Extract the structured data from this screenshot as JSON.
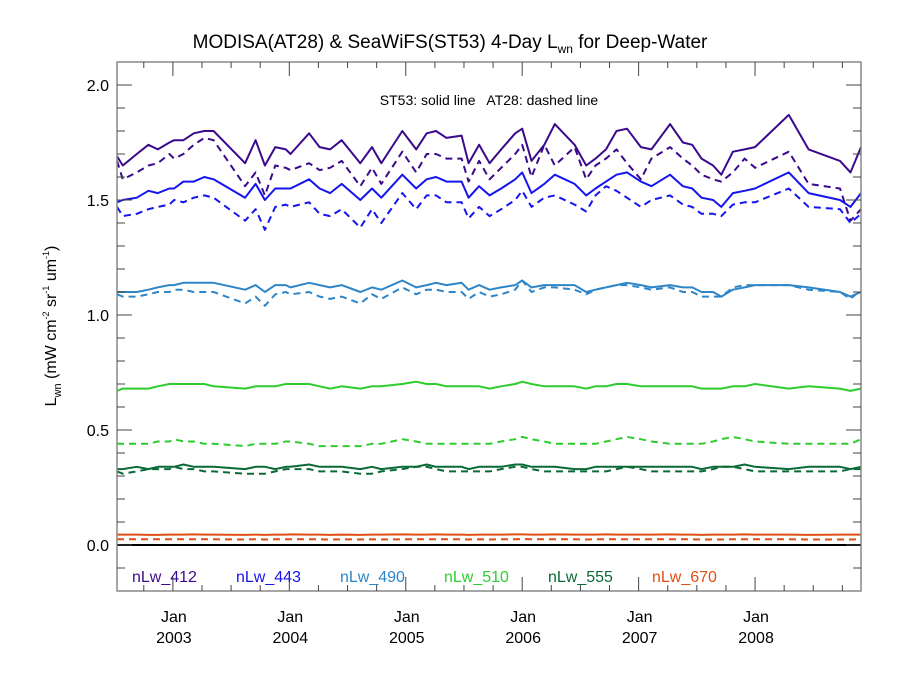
{
  "chart_data": {
    "type": "line",
    "title": "MODISA(AT28) & SeaWiFS(ST53) 4-Day L",
    "title_subscript": "wn",
    "title_suffix": " for Deep-Water",
    "annotation": "ST53: solid line   AT28: dashed line",
    "ylabel": {
      "main": "L",
      "main_sub": "wn",
      "units_parts": [
        {
          "text": " (mW cm",
          "sup": "-2"
        },
        {
          "text": " sr",
          "sup": "-1"
        },
        {
          "text": " um",
          "sup": "-1"
        },
        {
          "text": ")",
          "sup": ""
        }
      ]
    },
    "xlabel": "",
    "ylim": [
      -0.2,
      2.1
    ],
    "xlim": [
      2002.52,
      2008.91
    ],
    "yticks": [
      0.0,
      0.5,
      1.0,
      1.5,
      2.0
    ],
    "ytick_labels": [
      "0.0",
      "0.5",
      "1.0",
      "1.5",
      "2.0"
    ],
    "xticks": [
      {
        "value": 2003.0,
        "line1": "Jan",
        "line2": "2003"
      },
      {
        "value": 2004.0,
        "line1": "Jan",
        "line2": "2004"
      },
      {
        "value": 2005.0,
        "line1": "Jan",
        "line2": "2005"
      },
      {
        "value": 2006.0,
        "line1": "Jan",
        "line2": "2006"
      },
      {
        "value": 2007.0,
        "line1": "Jan",
        "line2": "2007"
      },
      {
        "value": 2008.0,
        "line1": "Jan",
        "line2": "2008"
      }
    ],
    "zero_line": 0.0,
    "grid": false,
    "legend_placement": "bottom-inside",
    "x": [
      2002.52,
      2002.57,
      2002.69,
      2002.79,
      2002.87,
      2002.97,
      2003.01,
      2003.09,
      2003.18,
      2003.27,
      2003.35,
      2003.62,
      2003.71,
      2003.79,
      2003.88,
      2003.97,
      2004.01,
      2004.17,
      2004.26,
      2004.35,
      2004.45,
      2004.61,
      2004.71,
      2004.79,
      2004.97,
      2005.09,
      2005.18,
      2005.26,
      2005.35,
      2005.48,
      2005.54,
      2005.63,
      2005.72,
      2005.82,
      2005.94,
      2006.0,
      2006.08,
      2006.19,
      2006.28,
      2006.45,
      2006.55,
      2006.63,
      2006.72,
      2006.81,
      2006.9,
      2007.02,
      2007.11,
      2007.27,
      2007.38,
      2007.46,
      2007.54,
      2007.64,
      2007.71,
      2007.81,
      2007.91,
      2008.0,
      2008.29,
      2008.46,
      2008.73,
      2008.82,
      2008.91
    ],
    "series": [
      {
        "name": "nLw_412",
        "sensor": "ST53",
        "style": "solid",
        "color": "#3b0a8c",
        "values": [
          1.69,
          1.65,
          1.7,
          1.74,
          1.72,
          1.75,
          1.76,
          1.76,
          1.79,
          1.8,
          1.8,
          1.66,
          1.76,
          1.65,
          1.73,
          1.72,
          1.7,
          1.79,
          1.73,
          1.72,
          1.76,
          1.66,
          1.73,
          1.66,
          1.8,
          1.72,
          1.79,
          1.8,
          1.77,
          1.78,
          1.66,
          1.74,
          1.66,
          1.72,
          1.79,
          1.81,
          1.67,
          1.74,
          1.83,
          1.74,
          1.65,
          1.68,
          1.72,
          1.8,
          1.81,
          1.73,
          1.72,
          1.83,
          1.75,
          1.74,
          1.68,
          1.65,
          1.61,
          1.71,
          1.72,
          1.73,
          1.87,
          1.72,
          1.67,
          1.62,
          1.73
        ]
      },
      {
        "name": "nLw_412",
        "sensor": "AT28",
        "style": "dashed",
        "color": "#3b0a8c",
        "values": [
          1.67,
          1.59,
          1.62,
          1.65,
          1.66,
          1.7,
          1.68,
          1.7,
          1.74,
          1.77,
          1.76,
          1.56,
          1.62,
          1.52,
          1.65,
          1.64,
          1.63,
          1.66,
          1.63,
          1.64,
          1.67,
          1.56,
          1.64,
          1.57,
          1.71,
          1.62,
          1.7,
          1.7,
          1.68,
          1.68,
          1.58,
          1.67,
          1.59,
          1.64,
          1.7,
          1.74,
          1.6,
          1.74,
          1.65,
          1.73,
          1.59,
          1.65,
          1.68,
          1.72,
          1.66,
          1.59,
          1.68,
          1.73,
          1.68,
          1.65,
          1.61,
          1.59,
          1.58,
          1.62,
          1.68,
          1.64,
          1.71,
          1.57,
          1.55,
          1.41,
          1.46
        ]
      },
      {
        "name": "nLw_443",
        "sensor": "ST53",
        "style": "solid",
        "color": "#1414f0",
        "values": [
          1.49,
          1.5,
          1.51,
          1.54,
          1.53,
          1.55,
          1.55,
          1.58,
          1.58,
          1.6,
          1.59,
          1.51,
          1.57,
          1.5,
          1.55,
          1.55,
          1.55,
          1.59,
          1.55,
          1.53,
          1.57,
          1.5,
          1.55,
          1.51,
          1.61,
          1.55,
          1.59,
          1.6,
          1.58,
          1.58,
          1.51,
          1.56,
          1.52,
          1.55,
          1.59,
          1.62,
          1.53,
          1.57,
          1.61,
          1.57,
          1.52,
          1.55,
          1.58,
          1.61,
          1.62,
          1.58,
          1.56,
          1.61,
          1.56,
          1.55,
          1.51,
          1.5,
          1.47,
          1.53,
          1.54,
          1.55,
          1.62,
          1.53,
          1.5,
          1.47,
          1.53
        ]
      },
      {
        "name": "nLw_443",
        "sensor": "AT28",
        "style": "dashed",
        "color": "#1414f0",
        "values": [
          1.47,
          1.43,
          1.44,
          1.46,
          1.47,
          1.48,
          1.5,
          1.49,
          1.51,
          1.52,
          1.51,
          1.41,
          1.46,
          1.37,
          1.47,
          1.48,
          1.47,
          1.49,
          1.44,
          1.43,
          1.46,
          1.38,
          1.46,
          1.4,
          1.53,
          1.46,
          1.52,
          1.52,
          1.49,
          1.49,
          1.42,
          1.47,
          1.43,
          1.46,
          1.5,
          1.54,
          1.47,
          1.51,
          1.52,
          1.48,
          1.45,
          1.52,
          1.56,
          1.54,
          1.51,
          1.47,
          1.5,
          1.52,
          1.48,
          1.47,
          1.44,
          1.44,
          1.43,
          1.48,
          1.49,
          1.49,
          1.55,
          1.47,
          1.46,
          1.4,
          1.44
        ]
      },
      {
        "name": "nLw_490",
        "sensor": "ST53",
        "style": "solid",
        "color": "#2e86c8",
        "values": [
          1.1,
          1.1,
          1.1,
          1.11,
          1.12,
          1.13,
          1.13,
          1.14,
          1.14,
          1.14,
          1.14,
          1.11,
          1.13,
          1.1,
          1.13,
          1.13,
          1.12,
          1.14,
          1.13,
          1.12,
          1.13,
          1.1,
          1.12,
          1.11,
          1.15,
          1.12,
          1.13,
          1.14,
          1.13,
          1.14,
          1.11,
          1.13,
          1.11,
          1.12,
          1.13,
          1.15,
          1.12,
          1.13,
          1.13,
          1.13,
          1.1,
          1.11,
          1.12,
          1.13,
          1.14,
          1.13,
          1.12,
          1.13,
          1.12,
          1.12,
          1.1,
          1.1,
          1.08,
          1.11,
          1.12,
          1.13,
          1.13,
          1.12,
          1.1,
          1.08,
          1.1
        ]
      },
      {
        "name": "nLw_490",
        "sensor": "AT28",
        "style": "dashed",
        "color": "#2e86c8",
        "values": [
          1.09,
          1.08,
          1.08,
          1.09,
          1.1,
          1.1,
          1.11,
          1.11,
          1.1,
          1.1,
          1.1,
          1.05,
          1.08,
          1.04,
          1.09,
          1.1,
          1.09,
          1.1,
          1.08,
          1.07,
          1.08,
          1.05,
          1.09,
          1.07,
          1.12,
          1.09,
          1.11,
          1.11,
          1.1,
          1.1,
          1.07,
          1.1,
          1.08,
          1.09,
          1.11,
          1.15,
          1.1,
          1.12,
          1.12,
          1.11,
          1.09,
          1.11,
          1.12,
          1.13,
          1.13,
          1.12,
          1.11,
          1.12,
          1.1,
          1.1,
          1.08,
          1.08,
          1.08,
          1.12,
          1.13,
          1.13,
          1.13,
          1.11,
          1.1,
          1.07,
          1.11
        ]
      },
      {
        "name": "nLw_510",
        "sensor": "ST53",
        "style": "solid",
        "color": "#2ecc2e",
        "values": [
          0.67,
          0.68,
          0.68,
          0.68,
          0.69,
          0.7,
          0.7,
          0.7,
          0.7,
          0.7,
          0.69,
          0.68,
          0.69,
          0.69,
          0.69,
          0.7,
          0.7,
          0.7,
          0.69,
          0.68,
          0.69,
          0.68,
          0.69,
          0.69,
          0.7,
          0.71,
          0.7,
          0.7,
          0.69,
          0.69,
          0.69,
          0.69,
          0.68,
          0.69,
          0.7,
          0.71,
          0.7,
          0.69,
          0.69,
          0.69,
          0.68,
          0.69,
          0.69,
          0.7,
          0.7,
          0.69,
          0.69,
          0.69,
          0.69,
          0.69,
          0.68,
          0.68,
          0.68,
          0.69,
          0.69,
          0.7,
          0.68,
          0.69,
          0.68,
          0.67,
          0.68
        ]
      },
      {
        "name": "nLw_510",
        "sensor": "AT28",
        "style": "dashed",
        "color": "#2ecc2e",
        "values": [
          0.44,
          0.44,
          0.44,
          0.44,
          0.45,
          0.45,
          0.46,
          0.45,
          0.45,
          0.44,
          0.44,
          0.43,
          0.44,
          0.44,
          0.44,
          0.45,
          0.45,
          0.44,
          0.43,
          0.43,
          0.43,
          0.43,
          0.44,
          0.44,
          0.46,
          0.45,
          0.44,
          0.44,
          0.44,
          0.44,
          0.44,
          0.44,
          0.44,
          0.45,
          0.46,
          0.47,
          0.46,
          0.45,
          0.44,
          0.44,
          0.44,
          0.44,
          0.45,
          0.46,
          0.47,
          0.46,
          0.45,
          0.44,
          0.44,
          0.44,
          0.44,
          0.45,
          0.46,
          0.47,
          0.46,
          0.45,
          0.44,
          0.44,
          0.44,
          0.44,
          0.46
        ]
      },
      {
        "name": "nLw_555",
        "sensor": "ST53",
        "style": "solid",
        "color": "#0a6a35",
        "values": [
          0.33,
          0.33,
          0.34,
          0.33,
          0.34,
          0.34,
          0.34,
          0.35,
          0.34,
          0.34,
          0.34,
          0.33,
          0.34,
          0.34,
          0.33,
          0.34,
          0.34,
          0.35,
          0.34,
          0.34,
          0.34,
          0.33,
          0.34,
          0.33,
          0.34,
          0.34,
          0.35,
          0.34,
          0.34,
          0.34,
          0.33,
          0.34,
          0.34,
          0.34,
          0.35,
          0.35,
          0.34,
          0.34,
          0.34,
          0.33,
          0.33,
          0.34,
          0.34,
          0.34,
          0.34,
          0.34,
          0.34,
          0.34,
          0.34,
          0.34,
          0.33,
          0.34,
          0.34,
          0.34,
          0.35,
          0.34,
          0.33,
          0.34,
          0.34,
          0.33,
          0.34
        ]
      },
      {
        "name": "nLw_555",
        "sensor": "AT28",
        "style": "dashed",
        "color": "#0a6a35",
        "values": [
          0.32,
          0.31,
          0.32,
          0.33,
          0.33,
          0.33,
          0.34,
          0.33,
          0.33,
          0.32,
          0.32,
          0.31,
          0.31,
          0.31,
          0.32,
          0.33,
          0.33,
          0.33,
          0.32,
          0.32,
          0.32,
          0.31,
          0.31,
          0.32,
          0.33,
          0.34,
          0.34,
          0.33,
          0.32,
          0.32,
          0.32,
          0.32,
          0.32,
          0.33,
          0.34,
          0.34,
          0.33,
          0.32,
          0.32,
          0.32,
          0.32,
          0.32,
          0.32,
          0.33,
          0.34,
          0.33,
          0.32,
          0.32,
          0.32,
          0.32,
          0.32,
          0.33,
          0.34,
          0.34,
          0.33,
          0.32,
          0.32,
          0.32,
          0.32,
          0.33,
          0.33
        ]
      },
      {
        "name": "nLw_670",
        "sensor": "ST53",
        "style": "solid",
        "color": "#e04e14",
        "values": [
          0.045,
          0.045,
          0.045,
          0.044,
          0.044,
          0.045,
          0.045,
          0.045,
          0.046,
          0.045,
          0.045,
          0.044,
          0.045,
          0.044,
          0.045,
          0.045,
          0.046,
          0.045,
          0.045,
          0.044,
          0.045,
          0.044,
          0.045,
          0.045,
          0.046,
          0.045,
          0.045,
          0.046,
          0.045,
          0.045,
          0.044,
          0.045,
          0.045,
          0.045,
          0.046,
          0.046,
          0.045,
          0.045,
          0.046,
          0.045,
          0.045,
          0.045,
          0.046,
          0.045,
          0.045,
          0.045,
          0.045,
          0.046,
          0.045,
          0.045,
          0.044,
          0.045,
          0.045,
          0.045,
          0.046,
          0.045,
          0.045,
          0.044,
          0.045,
          0.045,
          0.045
        ]
      },
      {
        "name": "nLw_670",
        "sensor": "AT28",
        "style": "dashed",
        "color": "#e04e14",
        "values": [
          0.025,
          0.025,
          0.025,
          0.025,
          0.025,
          0.025,
          0.025,
          0.025,
          0.025,
          0.025,
          0.025,
          0.024,
          0.025,
          0.024,
          0.025,
          0.025,
          0.025,
          0.025,
          0.025,
          0.024,
          0.025,
          0.024,
          0.025,
          0.024,
          0.025,
          0.025,
          0.025,
          0.025,
          0.025,
          0.025,
          0.024,
          0.025,
          0.024,
          0.025,
          0.025,
          0.026,
          0.025,
          0.025,
          0.025,
          0.025,
          0.024,
          0.025,
          0.025,
          0.025,
          0.025,
          0.025,
          0.025,
          0.025,
          0.025,
          0.025,
          0.024,
          0.024,
          0.024,
          0.025,
          0.025,
          0.025,
          0.025,
          0.024,
          0.024,
          0.024,
          0.025
        ]
      }
    ],
    "legend": [
      {
        "label": "nLw_412",
        "color": "#3b0a8c"
      },
      {
        "label": "nLw_443",
        "color": "#1414f0"
      },
      {
        "label": "nLw_490",
        "color": "#2e86c8"
      },
      {
        "label": "nLw_510",
        "color": "#2ecc2e"
      },
      {
        "label": "nLw_555",
        "color": "#0a6a35"
      },
      {
        "label": "nLw_670",
        "color": "#e04e14"
      }
    ]
  }
}
